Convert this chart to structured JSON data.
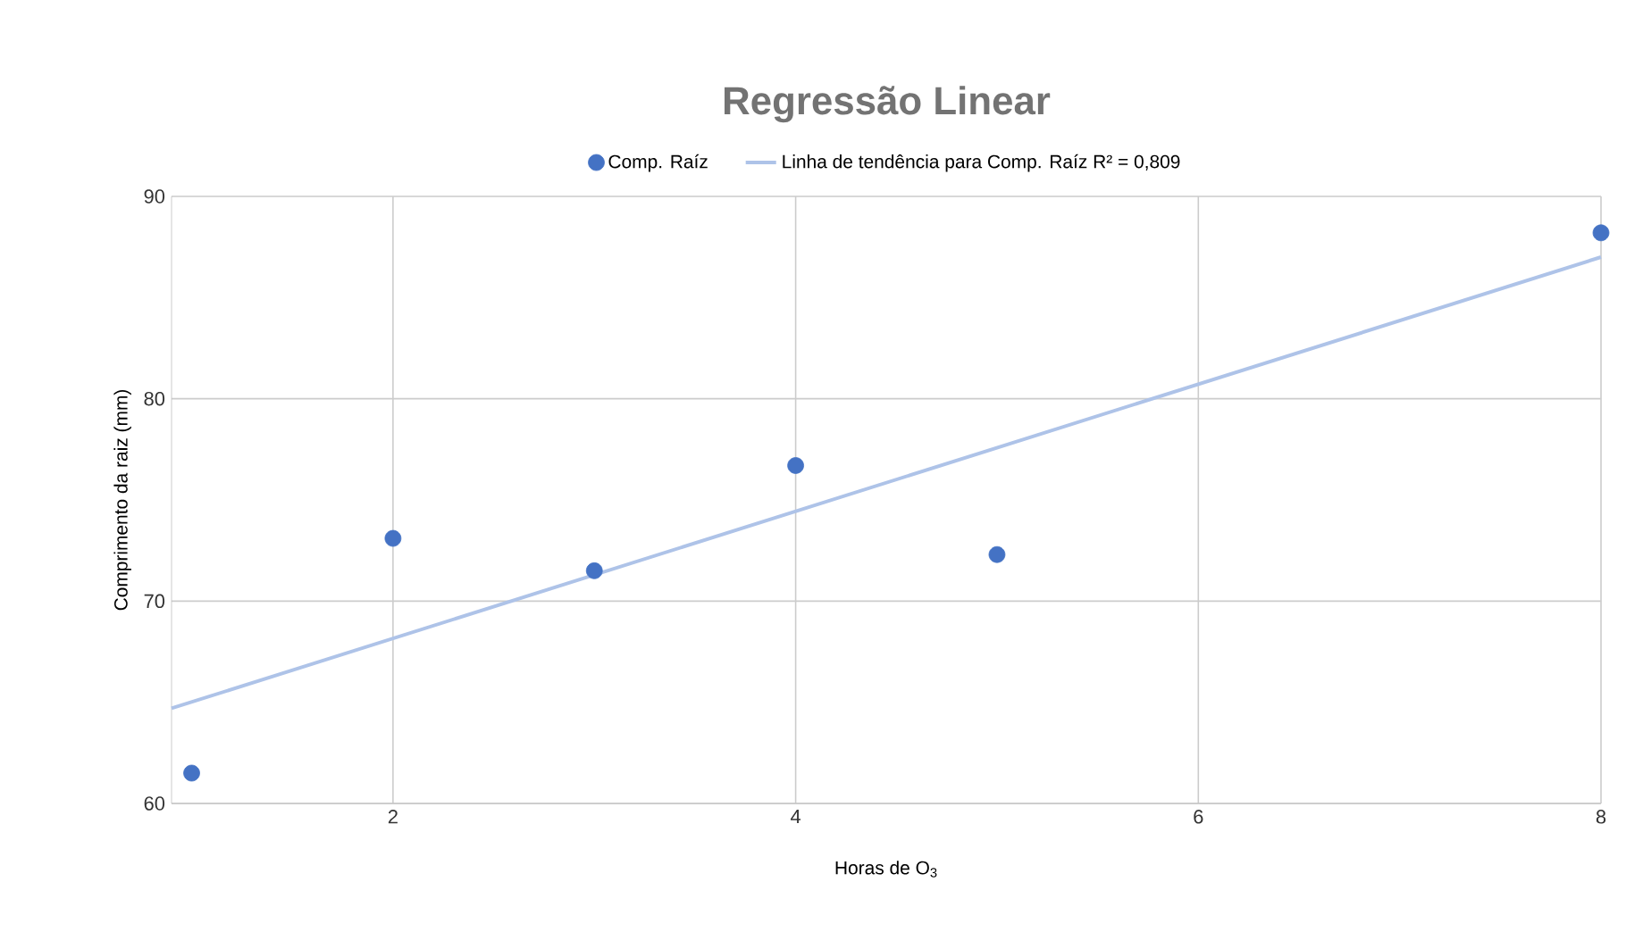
{
  "chart_data": {
    "type": "scatter",
    "title": "Regressão Linear",
    "xlabel": "Horas de O$_{3}$",
    "ylabel": "Comprimento da raiz (mm)",
    "xlim": [
      0.9,
      8
    ],
    "xticks": [
      2,
      4,
      6,
      8
    ],
    "ylim": [
      60,
      90
    ],
    "yticks": [
      60,
      70,
      80,
      90
    ],
    "grid": true,
    "legend": "top",
    "series": [
      {
        "name": "Comp. Raíz",
        "marker": "circle",
        "color": "#4472c4",
        "x": [
          1,
          2,
          3,
          4,
          5,
          8
        ],
        "values": [
          61.5,
          73.1,
          71.5,
          76.7,
          72.3,
          88.2
        ]
      },
      {
        "name": "Linha de tendência para Comp. Raíz R² = 0,809",
        "type": "line",
        "color": "#aec3e8",
        "x": [
          0.9,
          8
        ],
        "values": [
          64.7,
          87.0
        ]
      }
    ]
  }
}
